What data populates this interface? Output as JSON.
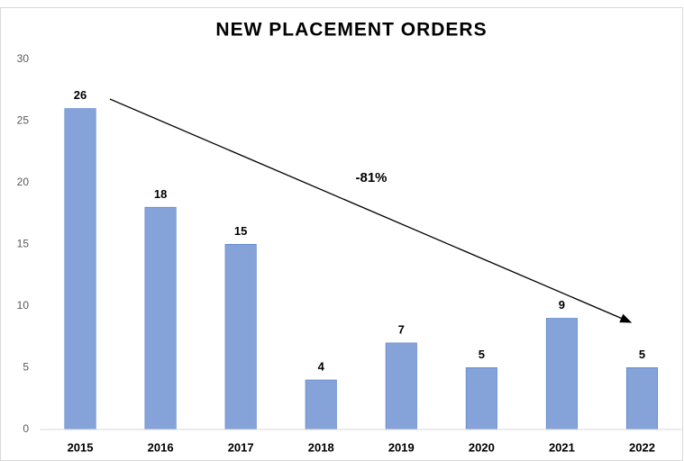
{
  "chart_data": {
    "type": "bar",
    "title": "NEW PLACEMENT ORDERS",
    "categories": [
      "2015",
      "2016",
      "2017",
      "2018",
      "2019",
      "2020",
      "2021",
      "2022"
    ],
    "values": [
      26,
      18,
      15,
      4,
      7,
      5,
      9,
      5
    ],
    "color": "#4472c4",
    "ylim": [
      0,
      30
    ],
    "yticks": [
      0,
      5,
      10,
      15,
      20,
      25,
      30
    ],
    "grid": false,
    "annotation": "-81%"
  }
}
